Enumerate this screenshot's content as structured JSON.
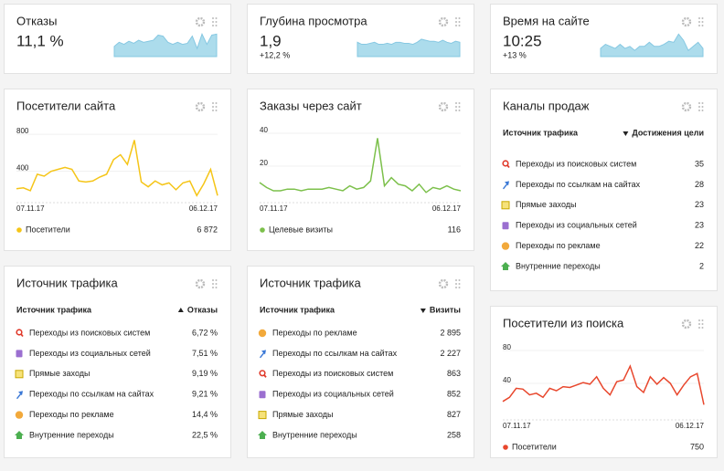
{
  "cards": {
    "bounce": {
      "title": "Отказы",
      "value": "11,1 %",
      "spark": {
        "ylim": [
          0,
          25
        ],
        "values": [
          10,
          14,
          12,
          15,
          13,
          16,
          14,
          15,
          16,
          21,
          20,
          14,
          12,
          14,
          12,
          13,
          20,
          8,
          22,
          12,
          21,
          22
        ]
      }
    },
    "depth": {
      "title": "Глубина просмотра",
      "value": "1,9",
      "change": "+12,2 %",
      "spark": {
        "ylim": [
          0,
          25
        ],
        "values": [
          14,
          12,
          12,
          13,
          14,
          12,
          12,
          13,
          12,
          14,
          14,
          13,
          13,
          12,
          14,
          17,
          16,
          15,
          15,
          14,
          16,
          14,
          13,
          15,
          14
        ]
      }
    },
    "time": {
      "title": "Время на сайте",
      "value": "10:25",
      "change": "+13 %",
      "spark": {
        "ylim": [
          0,
          25
        ],
        "values": [
          8,
          12,
          10,
          8,
          12,
          8,
          10,
          6,
          10,
          10,
          14,
          10,
          10,
          12,
          15,
          14,
          22,
          16,
          6,
          10,
          14,
          8
        ]
      }
    },
    "visitors": {
      "title": "Посетители сайта",
      "chart": {
        "type": "line",
        "color": "#f5c518",
        "ylim": [
          100,
          900
        ],
        "yticks": [
          400,
          800
        ],
        "x_labels": [
          "07.11.17",
          "06.12.17"
        ],
        "values": [
          211,
          221,
          190,
          368,
          347,
          400,
          421,
          442,
          421,
          295,
          284,
          295,
          337,
          368,
          526,
          579,
          474,
          737,
          284,
          232,
          295,
          253,
          274,
          200,
          274,
          295,
          137,
          263,
          421,
          137
        ]
      },
      "legend": {
        "name": "Посетители",
        "total": "6 872"
      }
    },
    "orders": {
      "title": "Заказы через сайт",
      "chart": {
        "type": "line",
        "color": "#7cc04b",
        "ylim": [
          0,
          45
        ],
        "yticks": [
          20,
          40
        ],
        "x_labels": [
          "07.11.17",
          "06.12.17"
        ],
        "values": [
          10,
          7,
          5,
          5,
          6,
          6,
          5,
          6,
          6,
          6,
          7,
          6,
          5,
          8,
          6,
          7,
          11,
          37,
          8,
          13,
          9,
          8,
          5,
          9,
          4,
          7,
          6,
          8,
          6,
          5
        ]
      },
      "legend": {
        "name": "Целевые визиты",
        "total": "116"
      }
    },
    "channels": {
      "title": "Каналы продаж",
      "columns": [
        "Источник трафика",
        "Достижения цели"
      ],
      "rows": [
        [
          "Переходы из поисковых систем",
          35
        ],
        [
          "Переходы по ссылкам на сайтах",
          28
        ],
        [
          "Прямые заходы",
          23
        ],
        [
          "Переходы из социальных сетей",
          23
        ],
        [
          "Переходы по рекламе",
          22
        ],
        [
          "Внутренние переходы",
          2
        ]
      ]
    },
    "source1": {
      "title": "Источник трафика",
      "columns": [
        "Источник трафика",
        "Отказы"
      ],
      "rows": [
        [
          "Переходы из поисковых систем",
          "6,72 %"
        ],
        [
          "Переходы из социальных сетей",
          "7,51 %"
        ],
        [
          "Прямые заходы",
          "9,19 %"
        ],
        [
          "Переходы по ссылкам на сайтах",
          "9,21 %"
        ],
        [
          "Переходы по рекламе",
          "14,4 %"
        ],
        [
          "Внутренние переходы",
          "22,5 %"
        ]
      ]
    },
    "source2": {
      "title": "Источник трафика",
      "columns": [
        "Источник трафика",
        "Визиты"
      ],
      "rows": [
        [
          "Переходы по рекламе",
          "2 895"
        ],
        [
          "Переходы по ссылкам на сайтах",
          "2 227"
        ],
        [
          "Переходы из поисковых систем",
          "863"
        ],
        [
          "Переходы из социальных сетей",
          "852"
        ],
        [
          "Прямые заходы",
          "827"
        ],
        [
          "Внутренние переходы",
          "258"
        ]
      ]
    },
    "search": {
      "title": "Посетители из поиска",
      "chart": {
        "type": "line",
        "color": "#e8472d",
        "ylim": [
          0,
          90
        ],
        "yticks": [
          40,
          80
        ],
        "x_labels": [
          "07.11.17",
          "06.12.17"
        ],
        "values": [
          18,
          23,
          34,
          33,
          26,
          28,
          23,
          34,
          31,
          36,
          35,
          38,
          41,
          39,
          48,
          34,
          26,
          42,
          44,
          61,
          36,
          29,
          48,
          39,
          47,
          40,
          26,
          38,
          48,
          52,
          14
        ]
      },
      "legend": {
        "name": "Посетители",
        "total": "750"
      }
    }
  }
}
